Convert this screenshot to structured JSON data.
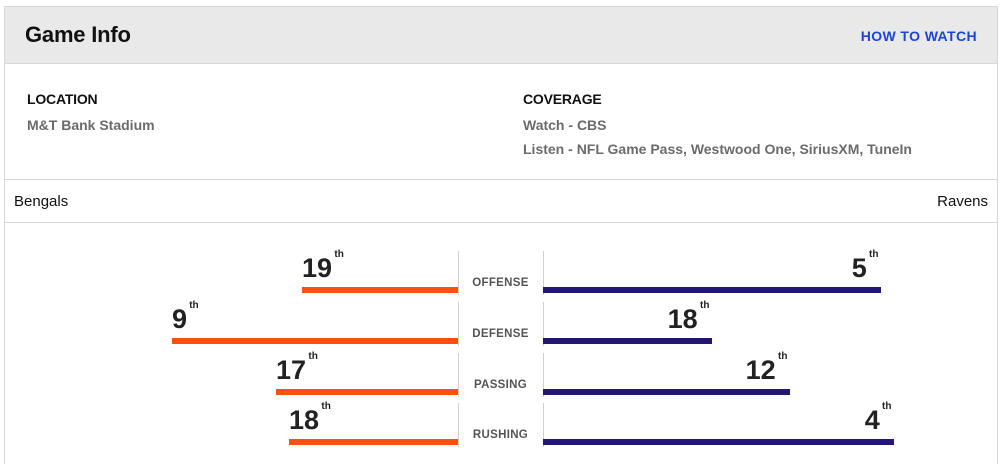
{
  "header": {
    "title": "Game Info",
    "how_to_watch": "HOW TO WATCH"
  },
  "location": {
    "label": "LOCATION",
    "value": "M&T Bank Stadium"
  },
  "coverage": {
    "label": "COVERAGE",
    "watch_label": "Watch",
    "watch_value": "CBS",
    "listen_label": "Listen",
    "listen_value": "NFL Game Pass, Westwood One, SiriusXM, TuneIn"
  },
  "teams": {
    "left": {
      "name": "Bengals",
      "color": "#fb4f14"
    },
    "right": {
      "name": "Ravens",
      "color": "#241773"
    }
  },
  "rankings": [
    {
      "category": "OFFENSE",
      "left": {
        "rank": 19,
        "suffix": "th"
      },
      "right": {
        "rank": 5,
        "suffix": "th"
      }
    },
    {
      "category": "DEFENSE",
      "left": {
        "rank": 9,
        "suffix": "th"
      },
      "right": {
        "rank": 18,
        "suffix": "th"
      }
    },
    {
      "category": "PASSING",
      "left": {
        "rank": 17,
        "suffix": "th"
      },
      "right": {
        "rank": 12,
        "suffix": "th"
      }
    },
    {
      "category": "RUSHING",
      "left": {
        "rank": 18,
        "suffix": "th"
      },
      "right": {
        "rank": 4,
        "suffix": "th"
      }
    }
  ]
}
